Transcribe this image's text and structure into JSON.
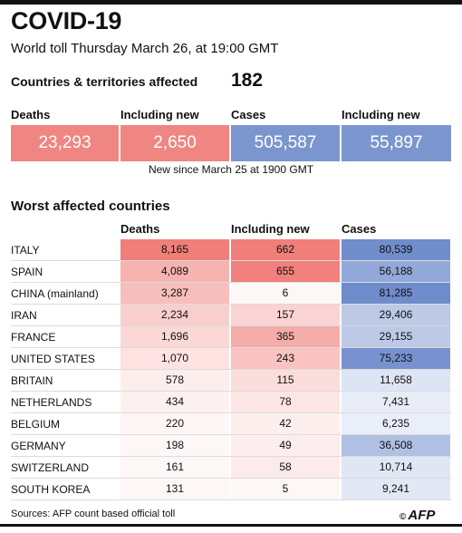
{
  "title": "COVID-19",
  "subtitle": "World toll Thursday March 26, at 19:00 GMT",
  "countries_label": "Countries & territories affected",
  "countries_value": "182",
  "summary": {
    "labels": [
      "Deaths",
      "Including new",
      "Cases",
      "Including new"
    ],
    "values": [
      "23,293",
      "2,650",
      "505,587",
      "55,897"
    ],
    "colors": [
      "#ef8682",
      "#ef8682",
      "#7b96cf",
      "#7b96cf"
    ],
    "note": "New since  March 25 at 1900 GMT"
  },
  "section_title": "Worst affected countries",
  "column_headers": [
    "Deaths",
    "Including new",
    "Cases"
  ],
  "colors": {
    "deaths_scale": "#f07f7a",
    "cases_scale": "#6f8ccc"
  },
  "chart_data": {
    "type": "table",
    "title": "Worst affected countries",
    "columns": [
      "Deaths",
      "Including new",
      "Cases"
    ],
    "rows": [
      {
        "country": "ITALY",
        "deaths": 8165,
        "new": 662,
        "cases": 80539
      },
      {
        "country": "SPAIN",
        "deaths": 4089,
        "new": 655,
        "cases": 56188
      },
      {
        "country": "CHINA (mainland)",
        "deaths": 3287,
        "new": 6,
        "cases": 81285
      },
      {
        "country": "IRAN",
        "deaths": 2234,
        "new": 157,
        "cases": 29406
      },
      {
        "country": "FRANCE",
        "deaths": 1696,
        "new": 365,
        "cases": 29155
      },
      {
        "country": "UNITED STATES",
        "deaths": 1070,
        "new": 243,
        "cases": 75233
      },
      {
        "country": "BRITAIN",
        "deaths": 578,
        "new": 115,
        "cases": 11658
      },
      {
        "country": "NETHERLANDS",
        "deaths": 434,
        "new": 78,
        "cases": 7431
      },
      {
        "country": "BELGIUM",
        "deaths": 220,
        "new": 42,
        "cases": 6235
      },
      {
        "country": "GERMANY",
        "deaths": 198,
        "new": 49,
        "cases": 36508
      },
      {
        "country": "SWITZERLAND",
        "deaths": 161,
        "new": 58,
        "cases": 10714
      },
      {
        "country": "SOUTH KOREA",
        "deaths": 131,
        "new": 5,
        "cases": 9241
      }
    ]
  },
  "source": "Sources: AFP count based official toll",
  "logo_text": "AFP"
}
